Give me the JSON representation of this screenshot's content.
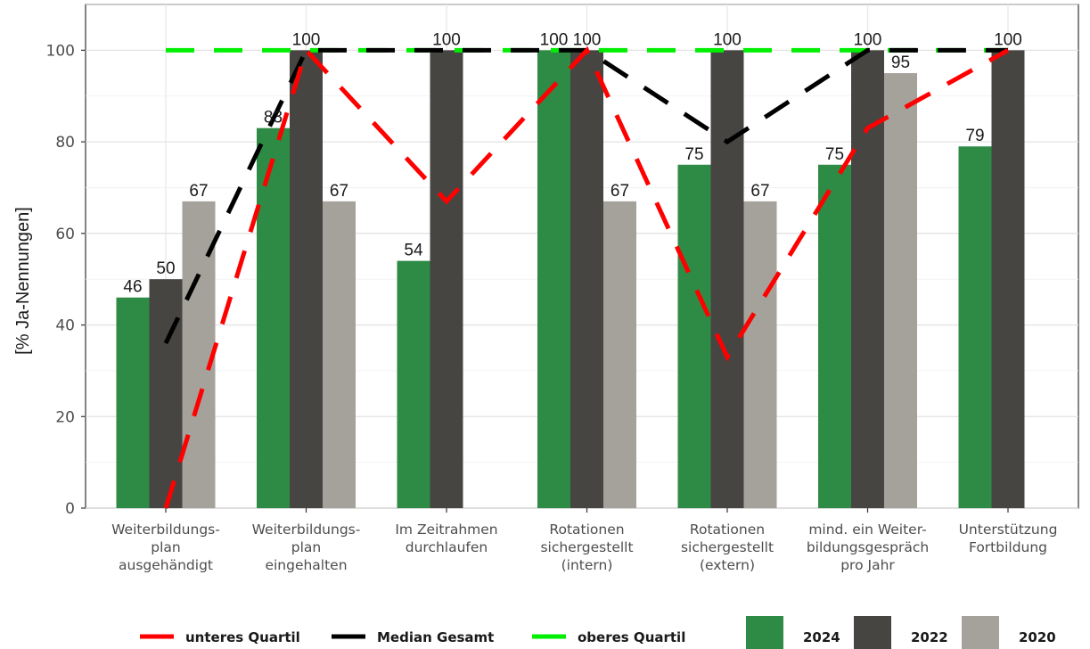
{
  "chart_data": {
    "type": "bar",
    "ylabel": "[% Ja-Nennungen]",
    "xlabel": "",
    "ylim": [
      0,
      110
    ],
    "yticks": [
      0,
      20,
      40,
      60,
      80,
      100
    ],
    "grid": true,
    "legend_position": "bottom",
    "categories": [
      [
        "Weiterbildungs-",
        "plan",
        "ausgehändigt"
      ],
      [
        "Weiterbildungs-",
        "plan",
        "eingehalten"
      ],
      [
        "Im Zeitrahmen",
        "durchlaufen"
      ],
      [
        "Rotationen",
        "sichergestellt",
        "(intern)"
      ],
      [
        "Rotationen",
        "sichergestellt",
        "(extern)"
      ],
      [
        "mind. ein Weiter-",
        "bildungsgespräch",
        "pro Jahr"
      ],
      [
        "Unterstützung",
        "Fortbildung"
      ]
    ],
    "series": [
      {
        "name": "2024",
        "color": "#2e8b45",
        "values": [
          46,
          83,
          54,
          100,
          75,
          75,
          79
        ],
        "labels": [
          "46",
          "83",
          "54",
          "100",
          "75",
          "75",
          "79"
        ]
      },
      {
        "name": "2022",
        "color": "#474542",
        "values": [
          50,
          100,
          100,
          100,
          100,
          100,
          100
        ],
        "labels": [
          "50",
          "100",
          "100",
          "100",
          "100",
          "100",
          "100"
        ]
      },
      {
        "name": "2020",
        "color": "#a5a29b",
        "values": [
          67,
          67,
          null,
          67,
          67,
          95,
          null
        ],
        "labels": [
          "67",
          "67",
          "",
          "67",
          "67",
          "95",
          ""
        ]
      }
    ],
    "lines": [
      {
        "name": "unteres Quartil",
        "color": "#ff0000",
        "dash": "long",
        "values": [
          0,
          100,
          67,
          100,
          33,
          83,
          100
        ]
      },
      {
        "name": "Median Gesamt",
        "color": "#000000",
        "dash": "long",
        "values": [
          36,
          100,
          100,
          100,
          80,
          100,
          100
        ]
      },
      {
        "name": "oberes Quartil",
        "color": "#00ee00",
        "dash": "long",
        "values": [
          100,
          100,
          100,
          100,
          100,
          100,
          100
        ]
      }
    ]
  }
}
